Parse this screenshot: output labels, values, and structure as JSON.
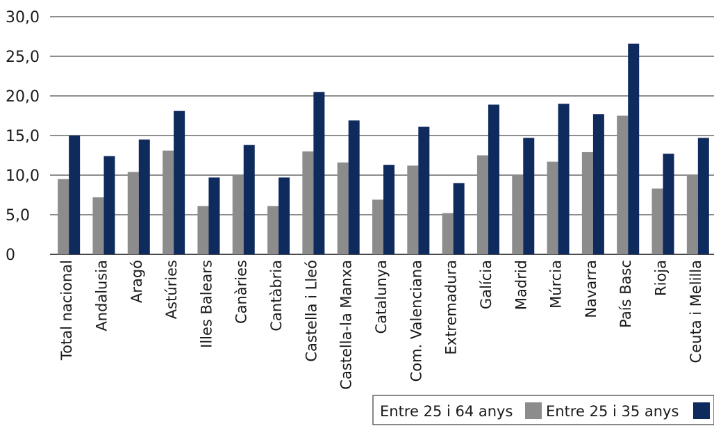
{
  "chart_data": {
    "type": "bar",
    "categories": [
      "Total nacional",
      "Andalusia",
      "Aragó",
      "Astúries",
      "Illes Balears",
      "Canàries",
      "Cantàbria",
      "Castella i Lleó",
      "Castella-la Manxa",
      "Catalunya",
      "Com. Valenciana",
      "Extremadura",
      "Galícia",
      "Madrid",
      "Múrcia",
      "Navarra",
      "País Basc",
      "Rioja",
      "Ceuta i Melilla"
    ],
    "series": [
      {
        "name": "Entre 25 i 64 anys",
        "color": "#8c8c8c",
        "values": [
          9.5,
          7.2,
          10.4,
          13.1,
          6.1,
          10.0,
          6.1,
          13.0,
          11.6,
          6.9,
          11.2,
          5.2,
          12.5,
          10.0,
          11.7,
          12.9,
          17.5,
          8.3,
          10.0
        ]
      },
      {
        "name": "Entre 25 i 35 anys",
        "color": "#0f2a5c",
        "values": [
          15.0,
          12.4,
          14.5,
          18.1,
          9.7,
          13.8,
          9.7,
          20.5,
          16.9,
          11.3,
          16.1,
          9.0,
          18.9,
          14.7,
          19.0,
          17.7,
          26.6,
          12.7,
          14.7
        ]
      }
    ],
    "yticks": [
      "30,0",
      "25,0",
      "20,0",
      "15,0",
      "10,0",
      "5,0",
      "0"
    ],
    "ylim": [
      0,
      30
    ],
    "grid": true,
    "legend_position": "bottom-right",
    "title": "",
    "xlabel": "",
    "ylabel": ""
  }
}
